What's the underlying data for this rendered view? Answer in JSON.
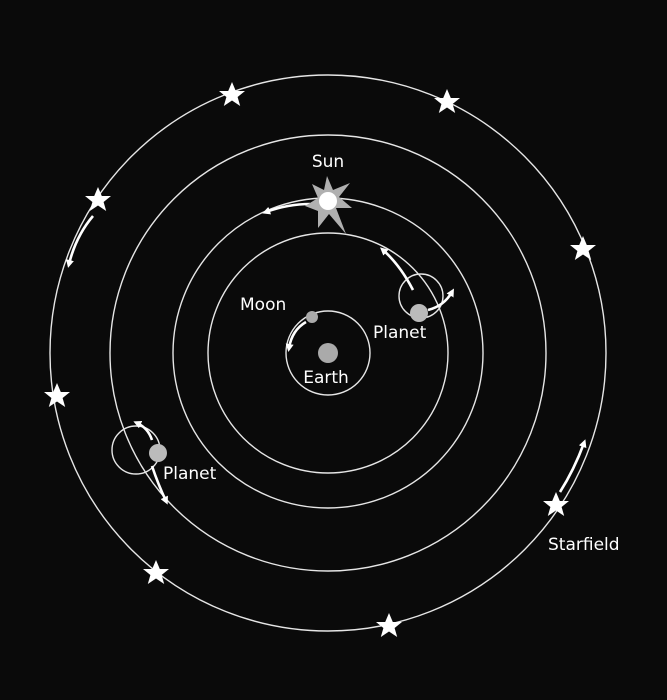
{
  "labels": {
    "sun": "Sun",
    "moon": "Moon",
    "earth": "Earth",
    "planet_inner": "Planet",
    "planet_outer": "Planet",
    "starfield": "Starfield"
  }
}
